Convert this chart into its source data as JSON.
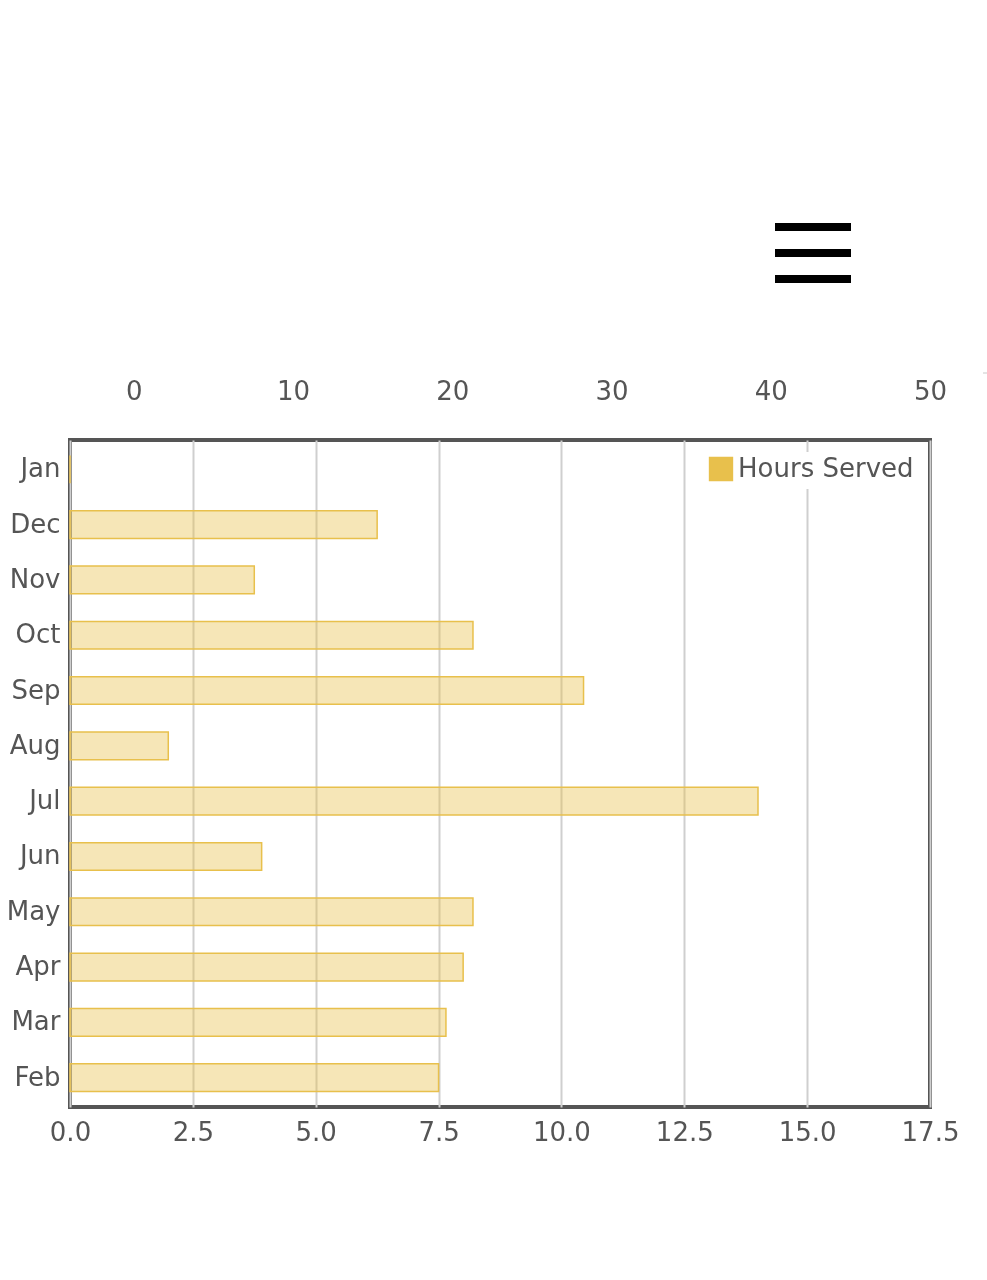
{
  "chart_data": {
    "type": "bar",
    "orientation": "horizontal",
    "categories": [
      "Jan",
      "Dec",
      "Nov",
      "Oct",
      "Sep",
      "Aug",
      "Jul",
      "Jun",
      "May",
      "Apr",
      "Mar",
      "Feb"
    ],
    "series": [
      {
        "name": "Hours Served",
        "color": "#e8c04c",
        "values": [
          0,
          6.25,
          3.75,
          8.2,
          10.45,
          2,
          14,
          3.9,
          8.2,
          8,
          7.65,
          7.5
        ]
      }
    ],
    "xlim": [
      0,
      17.5
    ],
    "xticks": [
      {
        "value": 0,
        "label": "0.0"
      },
      {
        "value": 2.5,
        "label": "2.5"
      },
      {
        "value": 5,
        "label": "5.0"
      },
      {
        "value": 7.5,
        "label": "7.5"
      },
      {
        "value": 10,
        "label": "10.0"
      },
      {
        "value": 12.5,
        "label": "12.5"
      },
      {
        "value": 15,
        "label": "15.0"
      },
      {
        "value": 17.5,
        "label": "17.5"
      }
    ],
    "x2lim": [
      -4,
      50
    ],
    "x2ticks": [
      0,
      10,
      20,
      30,
      40,
      50
    ],
    "grid": "x",
    "legend": "top right"
  }
}
